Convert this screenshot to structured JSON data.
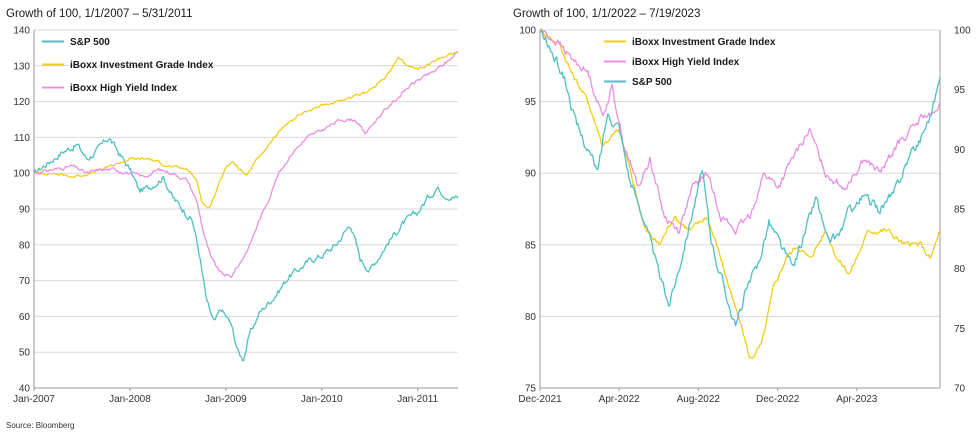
{
  "source": "Source: Bloomberg",
  "chart_data": [
    {
      "type": "line",
      "title": "Growth of 100, 1/1/2007 – 5/31/2011",
      "xlabel": "",
      "ylabel": "",
      "x_range": [
        2007.0,
        2011.42
      ],
      "ylim": [
        40,
        140
      ],
      "yticks": [
        40,
        50,
        60,
        70,
        80,
        90,
        100,
        110,
        120,
        130,
        140
      ],
      "xticks": [
        {
          "label": "Jan-2007",
          "x": 2007.0
        },
        {
          "label": "Jan-2008",
          "x": 2008.0
        },
        {
          "label": "Jan-2009",
          "x": 2009.0
        },
        {
          "label": "Jan-2010",
          "x": 2010.0
        },
        {
          "label": "Jan-2011",
          "x": 2011.0
        }
      ],
      "grid": "horizontal",
      "legend": "top-left",
      "series": [
        {
          "name": "S&P 500",
          "color": "#4fbfc0",
          "noise": 1.6,
          "points": [
            [
              2007.0,
              100
            ],
            [
              2007.15,
              103
            ],
            [
              2007.3,
              106
            ],
            [
              2007.45,
              108
            ],
            [
              2007.55,
              104
            ],
            [
              2007.65,
              106
            ],
            [
              2007.78,
              110
            ],
            [
              2007.9,
              105
            ],
            [
              2008.0,
              101
            ],
            [
              2008.1,
              95
            ],
            [
              2008.2,
              96
            ],
            [
              2008.35,
              99
            ],
            [
              2008.45,
              93
            ],
            [
              2008.55,
              90
            ],
            [
              2008.65,
              87
            ],
            [
              2008.72,
              78
            ],
            [
              2008.8,
              64
            ],
            [
              2008.88,
              58
            ],
            [
              2008.95,
              62
            ],
            [
              2009.05,
              58
            ],
            [
              2009.13,
              50
            ],
            [
              2009.18,
              48
            ],
            [
              2009.25,
              55
            ],
            [
              2009.35,
              61
            ],
            [
              2009.45,
              64
            ],
            [
              2009.55,
              67
            ],
            [
              2009.65,
              71
            ],
            [
              2009.75,
              73
            ],
            [
              2009.9,
              76
            ],
            [
              2010.0,
              77
            ],
            [
              2010.15,
              80
            ],
            [
              2010.3,
              86
            ],
            [
              2010.4,
              76
            ],
            [
              2010.5,
              73
            ],
            [
              2010.6,
              77
            ],
            [
              2010.7,
              81
            ],
            [
              2010.85,
              86
            ],
            [
              2011.0,
              89
            ],
            [
              2011.1,
              93
            ],
            [
              2011.2,
              96
            ],
            [
              2011.3,
              94
            ],
            [
              2011.42,
              93
            ]
          ]
        },
        {
          "name": "iBoxx Investment Grade Index",
          "color": "#f2cc1a",
          "noise": 0.6,
          "points": [
            [
              2007.0,
              100
            ],
            [
              2007.2,
              100
            ],
            [
              2007.4,
              99
            ],
            [
              2007.6,
              100
            ],
            [
              2007.8,
              102
            ],
            [
              2008.0,
              104
            ],
            [
              2008.2,
              104
            ],
            [
              2008.4,
              102
            ],
            [
              2008.6,
              101
            ],
            [
              2008.7,
              98
            ],
            [
              2008.75,
              92
            ],
            [
              2008.82,
              90
            ],
            [
              2008.9,
              95
            ],
            [
              2009.0,
              102
            ],
            [
              2009.08,
              103
            ],
            [
              2009.15,
              101
            ],
            [
              2009.22,
              99
            ],
            [
              2009.3,
              103
            ],
            [
              2009.45,
              108
            ],
            [
              2009.6,
              113
            ],
            [
              2009.75,
              116
            ],
            [
              2009.9,
              118
            ],
            [
              2010.0,
              119
            ],
            [
              2010.2,
              120
            ],
            [
              2010.4,
              122
            ],
            [
              2010.55,
              124
            ],
            [
              2010.7,
              128
            ],
            [
              2010.8,
              132
            ],
            [
              2010.9,
              130
            ],
            [
              2011.0,
              129
            ],
            [
              2011.15,
              131
            ],
            [
              2011.3,
              133
            ],
            [
              2011.42,
              134
            ]
          ]
        },
        {
          "name": "iBoxx High Yield Index",
          "color": "#e98fe3",
          "noise": 0.8,
          "points": [
            [
              2007.0,
              100
            ],
            [
              2007.2,
              101
            ],
            [
              2007.4,
              102
            ],
            [
              2007.55,
              100
            ],
            [
              2007.7,
              101
            ],
            [
              2007.85,
              101
            ],
            [
              2008.0,
              100
            ],
            [
              2008.15,
              99
            ],
            [
              2008.3,
              101
            ],
            [
              2008.45,
              100
            ],
            [
              2008.6,
              98
            ],
            [
              2008.7,
              92
            ],
            [
              2008.78,
              82
            ],
            [
              2008.85,
              76
            ],
            [
              2008.95,
              72
            ],
            [
              2009.05,
              71
            ],
            [
              2009.15,
              75
            ],
            [
              2009.25,
              80
            ],
            [
              2009.35,
              87
            ],
            [
              2009.45,
              93
            ],
            [
              2009.55,
              100
            ],
            [
              2009.7,
              106
            ],
            [
              2009.85,
              110
            ],
            [
              2010.0,
              112
            ],
            [
              2010.2,
              115
            ],
            [
              2010.35,
              115
            ],
            [
              2010.45,
              111
            ],
            [
              2010.6,
              116
            ],
            [
              2010.75,
              120
            ],
            [
              2010.9,
              124
            ],
            [
              2011.0,
              126
            ],
            [
              2011.15,
              128
            ],
            [
              2011.3,
              131
            ],
            [
              2011.42,
              134
            ]
          ]
        }
      ]
    },
    {
      "type": "line",
      "title": "Growth of 100, 1/1/2022 – 7/19/2023",
      "xlabel": "",
      "ylabel": "",
      "x_range": [
        2021.917,
        2023.6
      ],
      "ylim": [
        75,
        100
      ],
      "ylim_right": [
        70,
        100
      ],
      "yticks": [
        75,
        80,
        85,
        90,
        95,
        100
      ],
      "yticks_right": [
        70,
        75,
        80,
        85,
        90,
        95,
        100
      ],
      "xticks": [
        {
          "label": "Dec-2021",
          "x": 2021.917
        },
        {
          "label": "Apr-2022",
          "x": 2022.25
        },
        {
          "label": "Aug-2022",
          "x": 2022.583
        },
        {
          "label": "Dec-2022",
          "x": 2022.917
        },
        {
          "label": "Apr-2023",
          "x": 2023.25
        }
      ],
      "grid": "horizontal",
      "legend": "top-center",
      "series": [
        {
          "name": "iBoxx Investment Grade Index",
          "color": "#f2cc1a",
          "axis": "left",
          "noise": 0.35,
          "points": [
            [
              2021.917,
              100
            ],
            [
              2022.0,
              99
            ],
            [
              2022.05,
              97
            ],
            [
              2022.12,
              95
            ],
            [
              2022.18,
              92
            ],
            [
              2022.25,
              93
            ],
            [
              2022.3,
              90
            ],
            [
              2022.36,
              86
            ],
            [
              2022.42,
              85
            ],
            [
              2022.48,
              87
            ],
            [
              2022.55,
              86
            ],
            [
              2022.62,
              87
            ],
            [
              2022.68,
              84
            ],
            [
              2022.73,
              81
            ],
            [
              2022.77,
              79
            ],
            [
              2022.8,
              77
            ],
            [
              2022.85,
              78
            ],
            [
              2022.9,
              82
            ],
            [
              2022.95,
              84
            ],
            [
              2023.0,
              85
            ],
            [
              2023.05,
              84
            ],
            [
              2023.12,
              86
            ],
            [
              2023.17,
              84
            ],
            [
              2023.22,
              83
            ],
            [
              2023.3,
              86
            ],
            [
              2023.38,
              86
            ],
            [
              2023.45,
              85
            ],
            [
              2023.52,
              85
            ],
            [
              2023.56,
              84
            ],
            [
              2023.6,
              86
            ]
          ]
        },
        {
          "name": "iBoxx High Yield Index",
          "color": "#e98fe3",
          "axis": "left",
          "noise": 0.45,
          "points": [
            [
              2021.917,
              100
            ],
            [
              2022.0,
              99
            ],
            [
              2022.05,
              98
            ],
            [
              2022.12,
              97
            ],
            [
              2022.18,
              94
            ],
            [
              2022.22,
              96
            ],
            [
              2022.27,
              92
            ],
            [
              2022.33,
              89
            ],
            [
              2022.38,
              91
            ],
            [
              2022.44,
              87
            ],
            [
              2022.5,
              86
            ],
            [
              2022.56,
              89
            ],
            [
              2022.62,
              90
            ],
            [
              2022.68,
              87
            ],
            [
              2022.74,
              86
            ],
            [
              2022.8,
              87
            ],
            [
              2022.86,
              90
            ],
            [
              2022.92,
              89
            ],
            [
              2022.98,
              91
            ],
            [
              2023.05,
              93
            ],
            [
              2023.12,
              90
            ],
            [
              2023.2,
              89
            ],
            [
              2023.28,
              91
            ],
            [
              2023.35,
              90
            ],
            [
              2023.42,
              92
            ],
            [
              2023.48,
              93
            ],
            [
              2023.53,
              94
            ],
            [
              2023.58,
              94
            ],
            [
              2023.6,
              95
            ]
          ]
        },
        {
          "name": "S&P 500",
          "color": "#4fbfc0",
          "axis": "right",
          "noise": 0.7,
          "points": [
            [
              2021.917,
              100
            ],
            [
              2021.97,
              98
            ],
            [
              2022.02,
              96
            ],
            [
              2022.07,
              92
            ],
            [
              2022.12,
              90
            ],
            [
              2022.16,
              88
            ],
            [
              2022.2,
              93
            ],
            [
              2022.25,
              92
            ],
            [
              2022.3,
              87
            ],
            [
              2022.36,
              84
            ],
            [
              2022.41,
              80
            ],
            [
              2022.46,
              77
            ],
            [
              2022.5,
              80
            ],
            [
              2022.56,
              85
            ],
            [
              2022.6,
              88
            ],
            [
              2022.64,
              82
            ],
            [
              2022.7,
              78
            ],
            [
              2022.74,
              75
            ],
            [
              2022.78,
              78
            ],
            [
              2022.83,
              80
            ],
            [
              2022.88,
              84
            ],
            [
              2022.93,
              82
            ],
            [
              2022.98,
              80
            ],
            [
              2023.03,
              83
            ],
            [
              2023.08,
              86
            ],
            [
              2023.13,
              82
            ],
            [
              2023.18,
              83
            ],
            [
              2023.22,
              85
            ],
            [
              2023.28,
              86
            ],
            [
              2023.34,
              85
            ],
            [
              2023.4,
              86
            ],
            [
              2023.46,
              89
            ],
            [
              2023.52,
              91
            ],
            [
              2023.56,
              93
            ],
            [
              2023.6,
              96
            ]
          ]
        }
      ]
    }
  ]
}
